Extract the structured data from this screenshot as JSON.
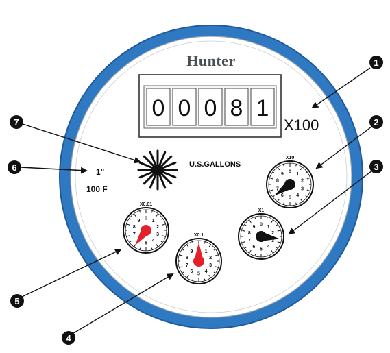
{
  "meter": {
    "brand": "Hunter",
    "odometer_digits": [
      "0",
      "0",
      "0",
      "8",
      "1"
    ],
    "multiplier": "X100",
    "units": "U.S.GALLONS",
    "size": "1\"",
    "max_temp": "100 F",
    "colors": {
      "ring": "#2f79c3",
      "ring_outline": "#1f5a9a",
      "face": "#ffffff",
      "red_pointer": "#e4202a",
      "black_pointer": "#111111"
    },
    "dials": [
      {
        "id": "x10",
        "label": "X10",
        "pointer_color": "#111111",
        "reading": 6.5
      },
      {
        "id": "x1",
        "label": "X1",
        "pointer_color": "#111111",
        "reading": 2.7
      },
      {
        "id": "x0_1",
        "label": "X0.1",
        "pointer_color": "#e4202a",
        "reading": 0.0
      },
      {
        "id": "x0_01",
        "label": "X0.01",
        "pointer_color": "#e4202a",
        "reading": 6.0
      }
    ],
    "dial_numbers": [
      "0",
      "1",
      "2",
      "3",
      "4",
      "5",
      "6",
      "7",
      "8",
      "9"
    ]
  },
  "callouts": [
    {
      "id": "c1",
      "number": "1"
    },
    {
      "id": "c2",
      "number": "2"
    },
    {
      "id": "c3",
      "number": "3"
    },
    {
      "id": "c4",
      "number": "4"
    },
    {
      "id": "c5",
      "number": "5"
    },
    {
      "id": "c6",
      "number": "6"
    },
    {
      "id": "c7",
      "number": "7"
    }
  ]
}
